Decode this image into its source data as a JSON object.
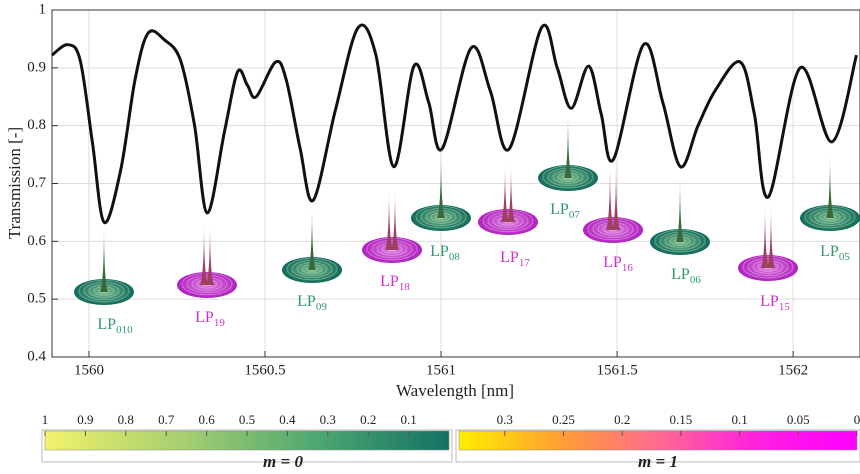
{
  "chart_data": {
    "type": "line",
    "xlabel": "Wavelength [nm]",
    "ylabel": "Transmission [-]",
    "xlim": [
      1559.895,
      1562.19
    ],
    "ylim": [
      0.4,
      1
    ],
    "xticks": [
      1560,
      1560.5,
      1561,
      1561.5,
      1562
    ],
    "yticks": [
      0.4,
      0.5,
      0.6,
      0.7,
      0.8,
      0.9,
      1
    ],
    "grid": true,
    "series": [
      {
        "color": "#111111",
        "x": [
          1559.895,
          1559.94,
          1559.975,
          1560.01,
          1560.043,
          1560.09,
          1560.131,
          1560.168,
          1560.215,
          1560.26,
          1560.3,
          1560.336,
          1560.385,
          1560.422,
          1560.45,
          1560.475,
          1560.53,
          1560.56,
          1560.6,
          1560.637,
          1560.7,
          1560.764,
          1560.815,
          1560.866,
          1560.923,
          1560.965,
          1561.003,
          1561.085,
          1561.14,
          1561.194,
          1561.285,
          1561.33,
          1561.37,
          1561.419,
          1561.455,
          1561.49,
          1561.575,
          1561.63,
          1561.68,
          1561.73,
          1561.78,
          1561.85,
          1561.89,
          1561.93,
          1562.02,
          1562.11,
          1562.18
        ],
        "values": [
          0.922,
          0.94,
          0.913,
          0.77,
          0.633,
          0.723,
          0.88,
          0.96,
          0.948,
          0.913,
          0.8,
          0.649,
          0.79,
          0.893,
          0.87,
          0.85,
          0.91,
          0.88,
          0.76,
          0.671,
          0.827,
          0.969,
          0.922,
          0.729,
          0.903,
          0.84,
          0.76,
          0.934,
          0.86,
          0.76,
          0.969,
          0.9,
          0.83,
          0.903,
          0.82,
          0.742,
          0.94,
          0.84,
          0.729,
          0.8,
          0.862,
          0.91,
          0.82,
          0.677,
          0.9,
          0.772,
          0.922
        ]
      }
    ],
    "annotations": [
      {
        "text": "LP",
        "sub": "010",
        "color": "#2e9a6a"
      },
      {
        "text": "LP",
        "sub": "19",
        "color": "#cc33cc"
      },
      {
        "text": "LP",
        "sub": "09",
        "color": "#2e9a6a"
      },
      {
        "text": "LP",
        "sub": "18",
        "color": "#cc33cc"
      },
      {
        "text": "LP",
        "sub": "08",
        "color": "#2e9a6a"
      },
      {
        "text": "LP",
        "sub": "17",
        "color": "#cc33cc"
      },
      {
        "text": "LP",
        "sub": "07",
        "color": "#2e9a6a"
      },
      {
        "text": "LP",
        "sub": "16",
        "color": "#cc33cc"
      },
      {
        "text": "LP",
        "sub": "06",
        "color": "#2e9a6a"
      },
      {
        "text": "LP",
        "sub": "15",
        "color": "#cc33cc"
      },
      {
        "text": "LP",
        "sub": "05",
        "color": "#2e9a6a"
      }
    ],
    "colorbars": [
      {
        "label": "m = 0",
        "label_color": "#2e9a6a",
        "lim": [
          1,
          0
        ],
        "ticks": [
          1,
          0.9,
          0.8,
          0.7,
          0.6,
          0.5,
          0.4,
          0.3,
          0.2,
          0.1
        ],
        "colors": [
          "#f2f26a",
          "#a8d070",
          "#4fa870",
          "#137264"
        ]
      },
      {
        "label": "m = 1",
        "label_color": "#b030b0",
        "lim": [
          0.339,
          0
        ],
        "ticks": [
          0.3,
          0.25,
          0.2,
          0.15,
          0.1,
          0.05,
          0
        ],
        "colors": [
          "#ffee00",
          "#ffa030",
          "#ff6a90",
          "#ff20e0",
          "#ff00ff"
        ]
      }
    ]
  }
}
